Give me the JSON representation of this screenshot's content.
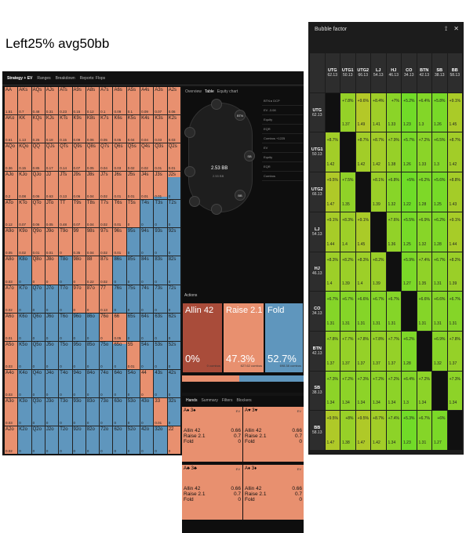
{
  "caption": "Left25% avg50bb",
  "left_nav": [
    "Strategy + EV",
    "Ranges",
    "Breakdown",
    "Reports: Flops"
  ],
  "table_tabs": [
    "Overview",
    "Table",
    "Equity chart"
  ],
  "table": {
    "pot": "2.53 BB",
    "pot2": "2.53 BB",
    "btn": "BTN",
    "sb": "SB",
    "bb": "BB"
  },
  "side_panel": [
    "BTN ▸ DCP",
    "EV -3.08",
    "Equity",
    "EQR",
    "Combos +1225",
    "EV",
    "Equity",
    "EQR",
    "Combos"
  ],
  "actions_header": "Actions",
  "actions": [
    {
      "label": "Allin 42",
      "pct": "0%",
      "combos": "0 combos",
      "color": "#a94c3a"
    },
    {
      "label": "Raise 2.1",
      "pct": "47.3%",
      "combos": "627.62 combos",
      "color": "#e8906f"
    },
    {
      "label": "Fold",
      "pct": "52.7%",
      "combos": "698.38 combos",
      "color": "#5f96bd"
    }
  ],
  "hand_tabs": [
    "Hands",
    "Summary",
    "Filters",
    "Blockers"
  ],
  "hand_cards": [
    {
      "suits": "A♠ 3♠",
      "rows": [
        [
          "Allin 42",
          "0.66"
        ],
        [
          "Raise 2.1",
          "0.7"
        ],
        [
          "Fold",
          "0"
        ]
      ]
    },
    {
      "suits": "A♥ 3♥",
      "rows": [
        [
          "Allin 42",
          "0.66"
        ],
        [
          "Raise 2.1",
          "0.7"
        ],
        [
          "Fold",
          "0"
        ]
      ]
    },
    {
      "suits": "A♣ 3♣",
      "rows": [
        [
          "Allin 42",
          "0.66"
        ],
        [
          "Raise 2.1",
          "0.7"
        ],
        [
          "Fold",
          "0"
        ]
      ]
    },
    {
      "suits": "A♦ 3♦",
      "rows": [
        [
          "Allin 42",
          "0.66"
        ],
        [
          "Raise 2.1",
          "0.7"
        ],
        [
          "Fold",
          "0"
        ]
      ]
    }
  ],
  "hand_card_ev": "EV",
  "range_grid": {
    "ranks": [
      "A",
      "K",
      "Q",
      "J",
      "T",
      "9",
      "8",
      "7",
      "6",
      "5",
      "4",
      "3",
      "2"
    ],
    "fold_fraction": [
      [
        0,
        0,
        0,
        0,
        0,
        0,
        0,
        0,
        0,
        0,
        0,
        0,
        0
      ],
      [
        0,
        0,
        0,
        0,
        0,
        0,
        0,
        0,
        0,
        0,
        0,
        0,
        0
      ],
      [
        0,
        0,
        0,
        0,
        0,
        0,
        0,
        0,
        0,
        0,
        0,
        0,
        0
      ],
      [
        0,
        0,
        0,
        0,
        0,
        0,
        0,
        0,
        0,
        0,
        0,
        0.1,
        0.8
      ],
      [
        0,
        0,
        0,
        0,
        0,
        0,
        0,
        0,
        0,
        0,
        1,
        1,
        1
      ],
      [
        0,
        0,
        0,
        0,
        0,
        0,
        0,
        0,
        0,
        1,
        1,
        1,
        1
      ],
      [
        0,
        1,
        0,
        0,
        1,
        0,
        0,
        0,
        1,
        1,
        1,
        1,
        1
      ],
      [
        0,
        1,
        1,
        1,
        1,
        0,
        0,
        0,
        1,
        1,
        1,
        1,
        1
      ],
      [
        0,
        1,
        1,
        1,
        1,
        1,
        1,
        0,
        0,
        1,
        1,
        1,
        1
      ],
      [
        0,
        1,
        1,
        1,
        1,
        1,
        1,
        1,
        0.9,
        0,
        1,
        1,
        1
      ],
      [
        0,
        1,
        1,
        1,
        1,
        1,
        1,
        1,
        1,
        1,
        0,
        1,
        1
      ],
      [
        0,
        1,
        1,
        1,
        1,
        1,
        1,
        1,
        1,
        1,
        1,
        0,
        1
      ],
      [
        0,
        1,
        1,
        1,
        1,
        1,
        1,
        1,
        1,
        1,
        1,
        1,
        0
      ]
    ],
    "values": [
      [
        "1.51",
        "0.7",
        "0.48",
        "0.31",
        "0.23",
        "0.15",
        "0.12",
        "0.1",
        "0.09",
        "0.1",
        "0.09",
        "0.07",
        "0.06"
      ],
      [
        "0.61",
        "1.13",
        "0.25",
        "0.18",
        "0.15",
        "0.09",
        "0.06",
        "0.05",
        "0.05",
        "0.04",
        "0.04",
        "0.03",
        "0.03"
      ],
      [
        "0.36",
        "0.15",
        "0.85",
        "0.17",
        "0.14",
        "0.07",
        "0.05",
        "0.04",
        "0.03",
        "0.02",
        "0.02",
        "0.01",
        "0.01"
      ],
      [
        "0.2",
        "0.08",
        "0.06",
        "0.63",
        "0.13",
        "0.06",
        "0.04",
        "0.02",
        "0.01",
        "0.01",
        "0.01",
        "0.01",
        "0"
      ],
      [
        "0.12",
        "0.07",
        "0.06",
        "0.05",
        "0.48",
        "0.07",
        "0.04",
        "0.02",
        "0.01",
        "0",
        "0",
        "0",
        "0"
      ],
      [
        "0.05",
        "0.02",
        "0.01",
        "0.01",
        "0",
        "0.35",
        "0.04",
        "0.02",
        "0.01",
        "0",
        "0",
        "0",
        "0"
      ],
      [
        "0.03",
        "0",
        "0",
        "0",
        "0",
        "0",
        "0.22",
        "0.02",
        "0",
        "0",
        "0",
        "0",
        "0"
      ],
      [
        "0.02",
        "0",
        "0",
        "0",
        "0",
        "0",
        "0",
        "0.13",
        "0",
        "0",
        "0",
        "0",
        "0"
      ],
      [
        "0.01",
        "0",
        "0",
        "0",
        "0",
        "0",
        "0",
        "0",
        "0.05",
        "0",
        "0",
        "0",
        "0"
      ],
      [
        "0.03",
        "0",
        "0",
        "0",
        "0",
        "0",
        "0",
        "0",
        "0",
        "0.01",
        "0",
        "0",
        "0"
      ],
      [
        "0.03",
        "0",
        "0",
        "0",
        "0",
        "0",
        "0",
        "0",
        "0",
        "0",
        "0",
        "0",
        "0"
      ],
      [
        "0.03",
        "0",
        "0",
        "0",
        "0",
        "0",
        "0",
        "0",
        "0",
        "0",
        "0",
        "0.01",
        "0"
      ],
      [
        "0.02",
        "0",
        "0",
        "0",
        "0",
        "0",
        "0",
        "0",
        "0",
        "0",
        "0",
        "0",
        "0"
      ]
    ]
  },
  "bubble": {
    "title": "Bubble factor",
    "players": [
      {
        "pos": "UTG",
        "stack": "62.13"
      },
      {
        "pos": "UTG1",
        "stack": "50.13"
      },
      {
        "pos": "UTG2",
        "stack": "66.13"
      },
      {
        "pos": "LJ",
        "stack": "54.13"
      },
      {
        "pos": "HJ",
        "stack": "46.13"
      },
      {
        "pos": "CO",
        "stack": "34.13"
      },
      {
        "pos": "BTN",
        "stack": "42.13"
      },
      {
        "pos": "SB",
        "stack": "38.13"
      },
      {
        "pos": "BB",
        "stack": "58.13"
      }
    ],
    "cells": [
      [
        null,
        [
          "+7.8%",
          "1.37"
        ],
        [
          "+9.6%",
          "1.49"
        ],
        [
          "+8.4%",
          "1.41"
        ],
        [
          "+7%",
          "1.33"
        ],
        [
          "+5.2%",
          "1.23"
        ],
        [
          "+6.4%",
          "1.3"
        ],
        [
          "+5.8%",
          "1.26"
        ],
        [
          "+9.1%",
          "1.45"
        ]
      ],
      [
        [
          "+8.7%",
          "1.42"
        ],
        null,
        [
          "+8.7%",
          "1.42"
        ],
        [
          "+8.7%",
          "1.42"
        ],
        [
          "+7.9%",
          "1.38"
        ],
        [
          "+5.7%",
          "1.26"
        ],
        [
          "+7.2%",
          "1.33"
        ],
        [
          "+6.5%",
          "1.3"
        ],
        [
          "+8.7%",
          "1.42"
        ]
      ],
      [
        [
          "+9.5%",
          "1.47"
        ],
        [
          "+7.5%",
          "1.35"
        ],
        null,
        [
          "+8.1%",
          "1.39"
        ],
        [
          "+6.8%",
          "1.32"
        ],
        [
          "+5%",
          "1.22"
        ],
        [
          "+6.2%",
          "1.28"
        ],
        [
          "+5.6%",
          "1.25"
        ],
        [
          "+8.8%",
          "1.43"
        ]
      ],
      [
        [
          "+9.1%",
          "1.44"
        ],
        [
          "+8.3%",
          "1.4"
        ],
        [
          "+9.1%",
          "1.45"
        ],
        null,
        [
          "+7.6%",
          "1.36"
        ],
        [
          "+5.5%",
          "1.25"
        ],
        [
          "+6.9%",
          "1.32"
        ],
        [
          "+6.2%",
          "1.28"
        ],
        [
          "+9.1%",
          "1.44"
        ]
      ],
      [
        [
          "+8.3%",
          "1.4"
        ],
        [
          "+8.2%",
          "1.39"
        ],
        [
          "+8.3%",
          "1.4"
        ],
        [
          "+8.2%",
          "1.39"
        ],
        null,
        [
          "+5.9%",
          "1.27"
        ],
        [
          "+7.4%",
          "1.35"
        ],
        [
          "+6.7%",
          "1.31"
        ],
        [
          "+8.2%",
          "1.39"
        ]
      ],
      [
        [
          "+6.7%",
          "1.31"
        ],
        [
          "+6.7%",
          "1.31"
        ],
        [
          "+6.6%",
          "1.31"
        ],
        [
          "+6.7%",
          "1.31"
        ],
        [
          "+6.7%",
          "1.31"
        ],
        null,
        [
          "+6.6%",
          "1.31"
        ],
        [
          "+6.6%",
          "1.31"
        ],
        [
          "+6.7%",
          "1.31"
        ]
      ],
      [
        [
          "+7.8%",
          "1.37"
        ],
        [
          "+7.7%",
          "1.37"
        ],
        [
          "+7.8%",
          "1.37"
        ],
        [
          "+7.8%",
          "1.37"
        ],
        [
          "+7.7%",
          "1.37"
        ],
        [
          "+6.2%",
          "1.28"
        ],
        null,
        [
          "+6.9%",
          "1.32"
        ],
        [
          "+7.8%",
          "1.37"
        ]
      ],
      [
        [
          "+7.3%",
          "1.34"
        ],
        [
          "+7.2%",
          "1.34"
        ],
        [
          "+7.3%",
          "1.34"
        ],
        [
          "+7.2%",
          "1.34"
        ],
        [
          "+7.2%",
          "1.34"
        ],
        [
          "+6.4%",
          "1.3"
        ],
        [
          "+7.2%",
          "1.34"
        ],
        null,
        [
          "+7.3%",
          "1.34"
        ]
      ],
      [
        [
          "+9.5%",
          "1.47"
        ],
        [
          "+8%",
          "1.38"
        ],
        [
          "+9.5%",
          "1.47"
        ],
        [
          "+8.7%",
          "1.42"
        ],
        [
          "+7.4%",
          "1.34"
        ],
        [
          "+5.3%",
          "1.23"
        ],
        [
          "+6.7%",
          "1.31"
        ],
        [
          "+6%",
          "1.27"
        ],
        null
      ]
    ]
  }
}
